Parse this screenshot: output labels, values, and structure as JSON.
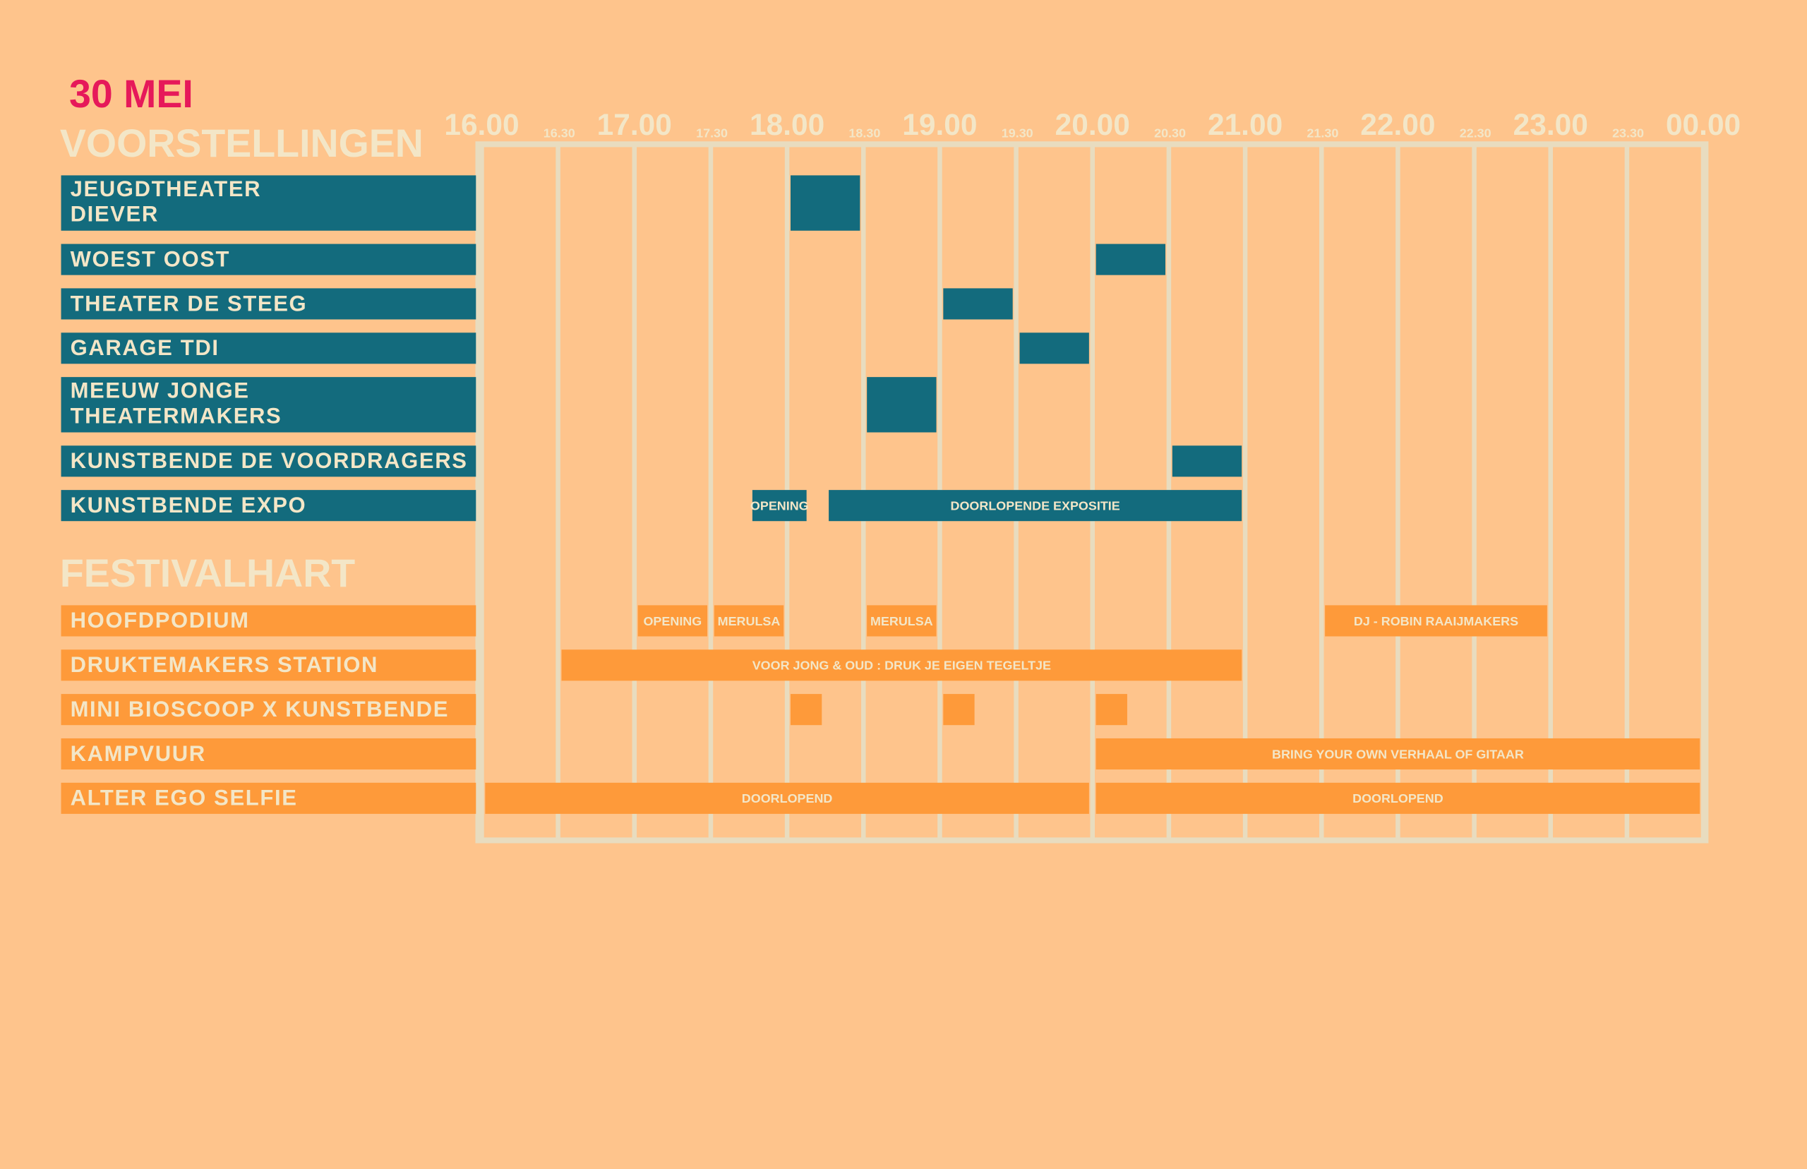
{
  "schedule": {
    "date": "30 MEI",
    "xlim": [
      16,
      24
    ],
    "xticks": [
      {
        "value": 16,
        "label": "16.00"
      },
      {
        "value": 16.5,
        "label": "16.30"
      },
      {
        "value": 17,
        "label": "17.00"
      },
      {
        "value": 17.5,
        "label": "17.30"
      },
      {
        "value": 18,
        "label": "18.00"
      },
      {
        "value": 18.5,
        "label": "18.30"
      },
      {
        "value": 19,
        "label": "19.00"
      },
      {
        "value": 19.5,
        "label": "19.30"
      },
      {
        "value": 20,
        "label": "20.00"
      },
      {
        "value": 20.5,
        "label": "20.30"
      },
      {
        "value": 21,
        "label": "21.00"
      },
      {
        "value": 21.5,
        "label": "21.30"
      },
      {
        "value": 22,
        "label": "22.00"
      },
      {
        "value": 22.5,
        "label": "22.30"
      },
      {
        "value": 23,
        "label": "23.00"
      },
      {
        "value": 23.5,
        "label": "23.30"
      },
      {
        "value": 24,
        "label": "00.00"
      }
    ],
    "sections": [
      {
        "title": "VOORSTELLINGEN",
        "color": "#136b7d",
        "rows": [
          {
            "label": [
              "JEUGDTHEATER",
              "DIEVER"
            ],
            "events": [
              {
                "start": 18,
                "end": 18.5
              }
            ]
          },
          {
            "label": [
              "WOEST OOST"
            ],
            "events": [
              {
                "start": 20,
                "end": 20.5
              }
            ]
          },
          {
            "label": [
              "THEATER DE STEEG"
            ],
            "events": [
              {
                "start": 19,
                "end": 19.5
              }
            ]
          },
          {
            "label": [
              "GARAGE TDI"
            ],
            "events": [
              {
                "start": 19.5,
                "end": 20
              }
            ]
          },
          {
            "label": [
              "MEEUW JONGE",
              "THEATERMAKERS"
            ],
            "events": [
              {
                "start": 18.5,
                "end": 19
              }
            ]
          },
          {
            "label": [
              "KUNSTBENDE DE VOORDRAGERS"
            ],
            "events": [
              {
                "start": 20.5,
                "end": 21
              }
            ]
          },
          {
            "label": [
              "KUNSTBENDE EXPO"
            ],
            "events": [
              {
                "start": 17.75,
                "end": 18.15,
                "label": "OPENING"
              },
              {
                "start": 18.25,
                "end": 21,
                "label": "DOORLOPENDE EXPOSITIE"
              }
            ]
          }
        ]
      },
      {
        "title": "FESTIVALHART",
        "color": "#fe9a3a",
        "rows": [
          {
            "label": [
              "HOOFDPODIUM"
            ],
            "events": [
              {
                "start": 17,
                "end": 17.5,
                "label": "OPENING"
              },
              {
                "start": 17.5,
                "end": 18,
                "label": "MERULSA"
              },
              {
                "start": 18.5,
                "end": 19,
                "label": "MERULSA"
              },
              {
                "start": 21.5,
                "end": 23,
                "label": "DJ - ROBIN RAAIJMAKERS"
              }
            ]
          },
          {
            "label": [
              "DRUKTEMAKERS STATION"
            ],
            "events": [
              {
                "start": 16.5,
                "end": 21,
                "label": "VOOR JONG & OUD : DRUK JE EIGEN TEGELTJE"
              }
            ]
          },
          {
            "label": [
              "MINI BIOSCOOP X KUNSTBENDE"
            ],
            "events": [
              {
                "start": 18,
                "end": 18.25
              },
              {
                "start": 19,
                "end": 19.25
              },
              {
                "start": 20,
                "end": 20.25
              }
            ]
          },
          {
            "label": [
              "KAMPVUUR"
            ],
            "events": [
              {
                "start": 20,
                "end": 24,
                "label": "BRING YOUR OWN VERHAAL OF GITAAR"
              }
            ]
          },
          {
            "label": [
              "ALTER EGO SELFIE"
            ],
            "events": [
              {
                "start": 16,
                "end": 20,
                "label": "DOORLOPEND"
              },
              {
                "start": 20,
                "end": 24,
                "label": "DOORLOPEND"
              }
            ]
          }
        ]
      }
    ]
  }
}
